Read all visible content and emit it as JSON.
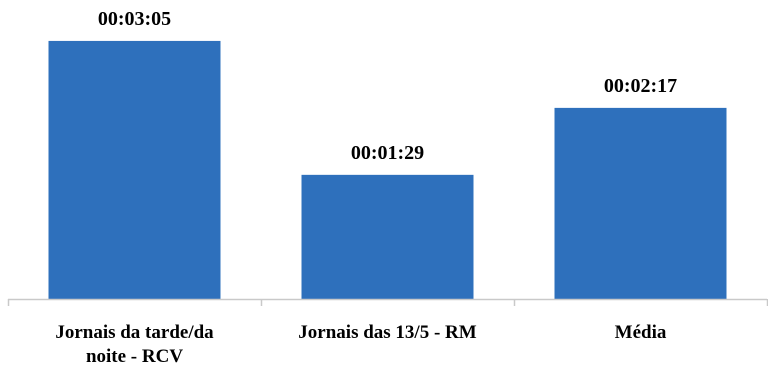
{
  "chart_data": {
    "type": "bar",
    "categories": [
      [
        "Jornais da tarde/da",
        "noite - RCV"
      ],
      [
        "Jornais das 13/5 - RM"
      ],
      [
        "Média"
      ]
    ],
    "values_seconds": [
      185,
      89,
      137
    ],
    "value_labels": [
      "00:03:05",
      "00:01:29",
      "00:02:17"
    ],
    "ylim_seconds": [
      0,
      200
    ],
    "grid": false,
    "legend": "none",
    "title": "",
    "xlabel": "",
    "ylabel": "",
    "bar_color": "#2E70BC",
    "axis_color": "#C9C9C9"
  }
}
